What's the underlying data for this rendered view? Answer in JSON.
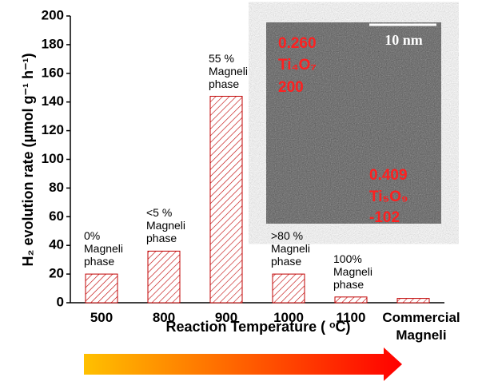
{
  "chart_data": {
    "type": "bar",
    "y_label": "H₂ evolution rate (μmol g⁻¹ h⁻¹)",
    "x_label": "Reaction Temperature ( ᵒC)",
    "categories": [
      "500",
      "800",
      "900",
      "1000",
      "1100",
      "Commercial Magneli"
    ],
    "values": [
      20,
      36,
      144,
      20,
      4,
      3
    ],
    "annotations": [
      "0% Magneli phase",
      "<5 % Magneli phase",
      "55 % Magneli phase",
      ">80 % Magneli phase",
      "100% Magneli phase",
      null
    ],
    "color": "#c00000",
    "ylim": [
      0,
      200
    ],
    "yticks": [
      0,
      20,
      40,
      60,
      80,
      100,
      120,
      140,
      160,
      180,
      200
    ],
    "inset_labels": [
      "0.260",
      "Ti₄O₇",
      "200",
      "0.409",
      "Ti₅O₉",
      "-102"
    ],
    "scale_bar_label": "10 nm"
  }
}
